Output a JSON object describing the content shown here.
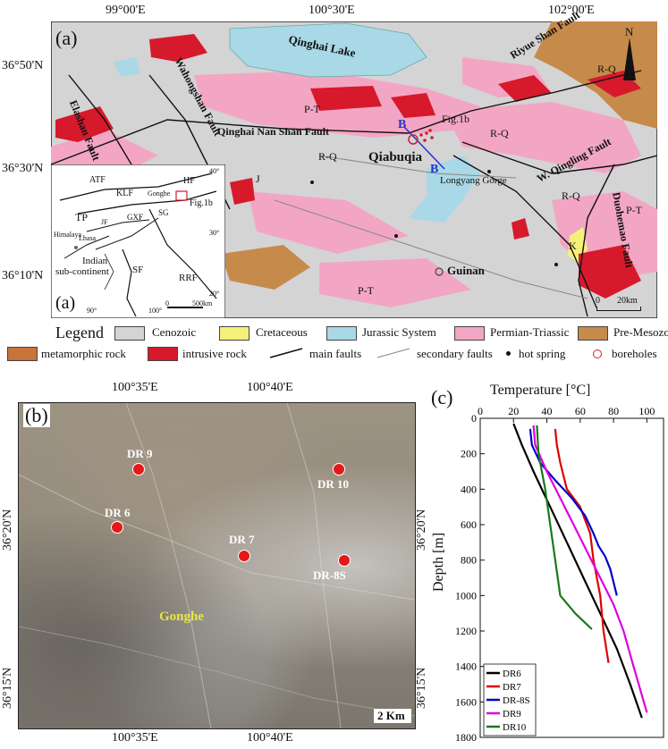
{
  "figure": {
    "panel_a": {
      "label": "(a)",
      "lon_ticks": [
        "99°00'E",
        "100°30'E",
        "102°00'E"
      ],
      "lat_ticks": [
        "36°50'N",
        "36°30'N",
        "36°10'N"
      ],
      "places": {
        "lake": "Qinghai Lake",
        "qiabuqia": "Qiabuqia",
        "longyang": "Longyang Gorge",
        "guinan": "Guinan",
        "fig1b": "Fig.1b",
        "b1": "B",
        "b2": "B"
      },
      "faults": {
        "elashan": "Elashan Fault",
        "wahongshan": "Wahongshan Fault",
        "qinghai_nanshan": "Qinghai Nan Shan Fault",
        "riyueshan": "Riyue Shan Fault",
        "w_qinling": "W. Qingling Fault",
        "duohemao": "Duohemao Fault"
      },
      "units": {
        "rq1": "R-Q",
        "rq2": "R-Q",
        "rq3": "R-Q",
        "rq4": "R-Q",
        "pt1": "P-T",
        "pt2": "P-T",
        "pt3": "P-T",
        "j1": "J",
        "k1": "K"
      },
      "north": "N",
      "scale": {
        "zero": "0",
        "len": "20km"
      },
      "inset": {
        "label": "(a)",
        "atf": "ATF",
        "klf": "KLF",
        "gonghe": "Gonghe",
        "hf": "HF",
        "fig1b": "Fig.1b",
        "tp": "TP",
        "jf": "JF",
        "gxf": "GXF",
        "sg": "SG",
        "himalaya": "Himalaya",
        "lhasa": "Lhasa",
        "indian": "Indian",
        "subcont": "sub-continent",
        "sf": "SF",
        "rrf": "RRF",
        "lat40": "40°",
        "lat30": "30°",
        "lat20": "20°",
        "lon90": "90°",
        "lon100": "100°",
        "scale0": "0",
        "scale500": "500km"
      },
      "legend": {
        "title": "Legend",
        "items": [
          {
            "label": "Cenozoic",
            "color": "#d4d4d4"
          },
          {
            "label": "Cretaceous",
            "color": "#f5f07a"
          },
          {
            "label": "Jurassic System",
            "color": "#a9d8e6"
          },
          {
            "label": "Permian-Triassic",
            "color": "#f3a6c4"
          },
          {
            "label": "Pre-Mesozoic",
            "color": "#c68a4b"
          },
          {
            "label": "metamorphic rock",
            "color": "#c7733a"
          },
          {
            "label": "intrusive rock",
            "color": "#d7192c"
          },
          {
            "label": "main faults",
            "color": "#111111"
          },
          {
            "label": "secondary faults",
            "color": "#888888"
          },
          {
            "label": "hot spring",
            "color": "#111111"
          },
          {
            "label": "boreholes",
            "color": "#d7192c"
          }
        ]
      }
    },
    "panel_b": {
      "label": "(b)",
      "top_ticks": [
        "100°35'E",
        "100°40'E"
      ],
      "bottom_ticks": [
        "100°35'E",
        "100°40'E"
      ],
      "lat_ticks": [
        "36°20'N",
        "36°15'N"
      ],
      "town": "Gonghe",
      "scale": "2 Km",
      "wells": [
        {
          "label": "DR 9"
        },
        {
          "label": "DR 10"
        },
        {
          "label": "DR 6"
        },
        {
          "label": "DR 7"
        },
        {
          "label": "DR-8S"
        }
      ]
    },
    "panel_c": {
      "label": "(c)"
    }
  },
  "chart_data": {
    "type": "line",
    "xlabel": "Temperature [°C]",
    "ylabel": "Depth [m]",
    "xlim": [
      0,
      110
    ],
    "ylim": [
      1800,
      0
    ],
    "x_ticks": [
      0,
      20,
      40,
      60,
      80,
      100
    ],
    "y_ticks": [
      0,
      200,
      400,
      600,
      800,
      1000,
      1200,
      1400,
      1600,
      1800
    ],
    "right_label": "36°15'N",
    "right_label2": "36°20'N",
    "legend_position": "bottom-left",
    "series": [
      {
        "name": "DR6",
        "color": "#000000",
        "points": [
          [
            20,
            30
          ],
          [
            25,
            150
          ],
          [
            32,
            300
          ],
          [
            42,
            500
          ],
          [
            52,
            700
          ],
          [
            62,
            900
          ],
          [
            72,
            1100
          ],
          [
            82,
            1300
          ],
          [
            90,
            1500
          ],
          [
            97,
            1690
          ]
        ]
      },
      {
        "name": "DR7",
        "color": "#e00000",
        "points": [
          [
            45,
            60
          ],
          [
            46,
            150
          ],
          [
            48,
            250
          ],
          [
            52,
            400
          ],
          [
            60,
            500
          ],
          [
            66,
            650
          ],
          [
            68,
            800
          ],
          [
            72,
            1000
          ],
          [
            74,
            1200
          ],
          [
            77,
            1380
          ]
        ]
      },
      {
        "name": "DR-8S",
        "color": "#0000cc",
        "points": [
          [
            30,
            60
          ],
          [
            31,
            150
          ],
          [
            36,
            250
          ],
          [
            45,
            350
          ],
          [
            55,
            450
          ],
          [
            63,
            550
          ],
          [
            68,
            650
          ],
          [
            71,
            720
          ],
          [
            75,
            780
          ],
          [
            78,
            850
          ],
          [
            82,
            1000
          ]
        ]
      },
      {
        "name": "DR9",
        "color": "#e000e0",
        "points": [
          [
            32,
            40
          ],
          [
            33,
            150
          ],
          [
            40,
            300
          ],
          [
            48,
            450
          ],
          [
            56,
            600
          ],
          [
            64,
            750
          ],
          [
            72,
            900
          ],
          [
            80,
            1050
          ],
          [
            86,
            1200
          ],
          [
            92,
            1400
          ],
          [
            100,
            1660
          ]
        ]
      },
      {
        "name": "DR10",
        "color": "#1a7a1a",
        "points": [
          [
            34,
            40
          ],
          [
            35,
            200
          ],
          [
            39,
            400
          ],
          [
            42,
            600
          ],
          [
            45,
            800
          ],
          [
            48,
            1000
          ],
          [
            57,
            1100
          ],
          [
            67,
            1190
          ]
        ]
      }
    ]
  }
}
